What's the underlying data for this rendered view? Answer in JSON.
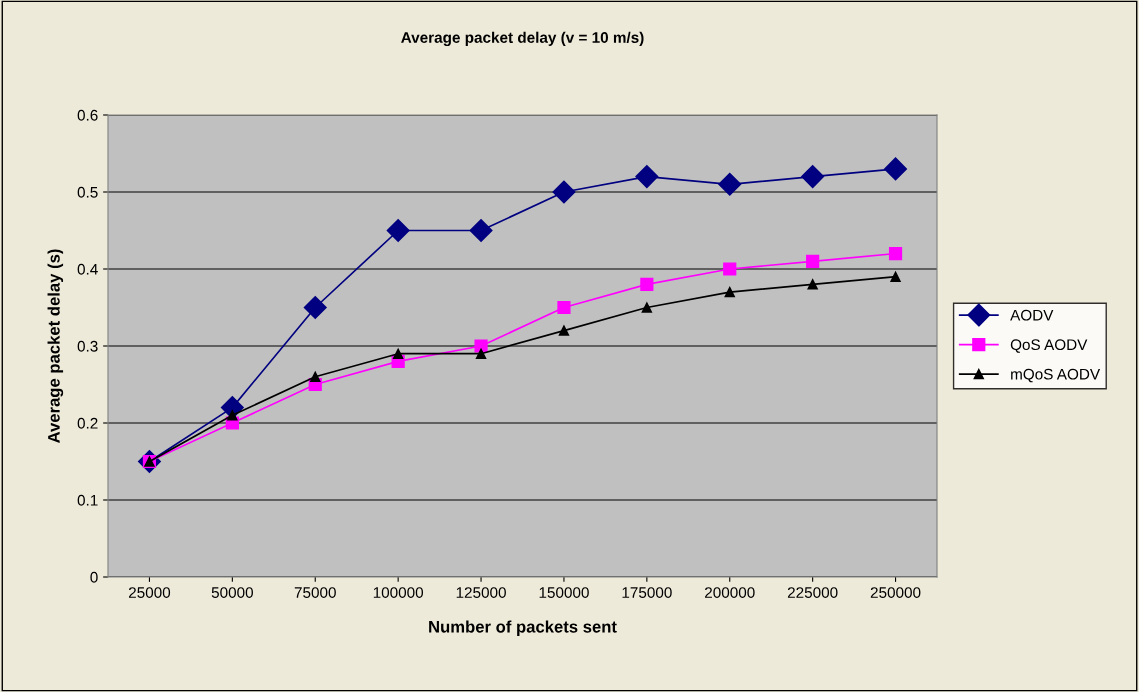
{
  "chart_data": {
    "type": "line",
    "title": "Average packet delay (v = 10 m/s)",
    "xlabel": "Number of packets sent",
    "ylabel": "Average packet delay (s)",
    "categories": [
      "25000",
      "50000",
      "75000",
      "100000",
      "125000",
      "150000",
      "175000",
      "200000",
      "225000",
      "250000"
    ],
    "series": [
      {
        "name": "AODV",
        "color": "#000080",
        "marker": "diamond",
        "values": [
          0.15,
          0.22,
          0.35,
          0.45,
          0.45,
          0.5,
          0.52,
          0.51,
          0.52,
          0.53
        ]
      },
      {
        "name": "QoS AODV",
        "color": "#ff00ff",
        "marker": "square",
        "values": [
          0.15,
          0.2,
          0.25,
          0.28,
          0.3,
          0.35,
          0.38,
          0.4,
          0.41,
          0.42
        ]
      },
      {
        "name": "mQoS AODV",
        "color": "#000000",
        "marker": "triangle",
        "values": [
          0.15,
          0.21,
          0.26,
          0.29,
          0.29,
          0.32,
          0.35,
          0.37,
          0.38,
          0.39
        ]
      }
    ],
    "ylim": [
      0,
      0.6
    ],
    "yticks": [
      0,
      0.1,
      0.2,
      0.3,
      0.4,
      0.5,
      0.6
    ],
    "grid": "y",
    "legend": "right",
    "line_style": "solid"
  }
}
